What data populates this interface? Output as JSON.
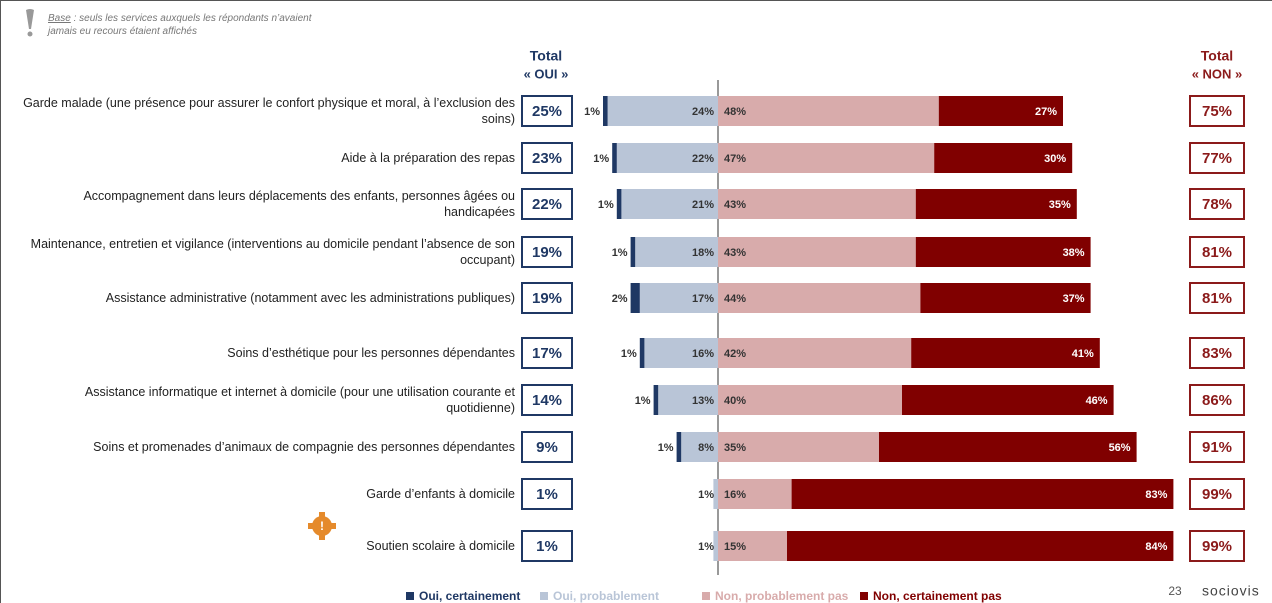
{
  "chart_data": {
    "type": "diverging_stacked_bar",
    "note": {
      "label": "Base",
      "text": ": seuls les services auxquels les répondants n’avaient jamais eu recours étaient affichés"
    },
    "total_yes_header": [
      "Total",
      "« OUI »"
    ],
    "total_no_header": [
      "Total",
      "« NON »"
    ],
    "categories": [
      "Garde malade (une présence pour assurer le confort physique et moral, à l’exclusion des soins)",
      "Aide à la préparation des repas",
      "Accompagnement dans leurs déplacements des enfants, personnes âgées ou handicapées",
      "Maintenance, entretien et vigilance (interventions au domicile pendant l’absence de son occupant)",
      "Assistance administrative (notamment avec les administrations publiques)",
      "Soins d’esthétique pour les personnes dépendantes",
      "Assistance informatique et internet à domicile (pour une utilisation courante et quotidienne)",
      "Soins et promenades d’animaux de compagnie des personnes dépendantes",
      "Garde d’enfants à domicile",
      "Soutien scolaire à domicile"
    ],
    "series": [
      {
        "name": "Oui, certainement",
        "color": "#1f3864",
        "side": "left",
        "values": [
          1,
          1,
          1,
          1,
          2,
          1,
          1,
          1,
          null,
          null
        ],
        "value_labels": [
          "1%",
          "1%",
          "1%",
          "1%",
          "2%",
          "1%",
          "1%",
          "1%",
          null,
          null
        ]
      },
      {
        "name": "Oui, probablement",
        "color": "#b9c5d7",
        "side": "left",
        "values": [
          24,
          22,
          21,
          18,
          17,
          16,
          13,
          8,
          1,
          1
        ],
        "value_labels": [
          "24%",
          "22%",
          "21%",
          "18%",
          "17%",
          "16%",
          "13%",
          "8%",
          "1%",
          "1%"
        ]
      },
      {
        "name": "Non, probablement pas",
        "color": "#d8abab",
        "side": "right",
        "values": [
          48,
          47,
          43,
          43,
          44,
          42,
          40,
          35,
          16,
          15
        ],
        "value_labels": [
          "48%",
          "47%",
          "43%",
          "43%",
          "44%",
          "42%",
          "40%",
          "35%",
          "16%",
          "15%"
        ]
      },
      {
        "name": "Non, certainement pas",
        "color": "#800000",
        "side": "right",
        "values": [
          27,
          30,
          35,
          38,
          37,
          41,
          46,
          56,
          83,
          84
        ],
        "value_labels": [
          "27%",
          "30%",
          "35%",
          "38%",
          "37%",
          "41%",
          "46%",
          "56%",
          "83%",
          "84%"
        ]
      }
    ],
    "total_yes": {
      "values": [
        25,
        23,
        22,
        19,
        19,
        17,
        14,
        9,
        1,
        1
      ],
      "value_labels": [
        "25%",
        "23%",
        "22%",
        "19%",
        "19%",
        "17%",
        "14%",
        "9%",
        "1%",
        "1%"
      ]
    },
    "total_no": {
      "values": [
        75,
        77,
        78,
        81,
        81,
        83,
        86,
        91,
        99,
        99
      ],
      "value_labels": [
        "75%",
        "77%",
        "78%",
        "81%",
        "81%",
        "83%",
        "86%",
        "91%",
        "99%",
        "99%"
      ]
    },
    "page_number": "23",
    "logo": "sociovis"
  }
}
